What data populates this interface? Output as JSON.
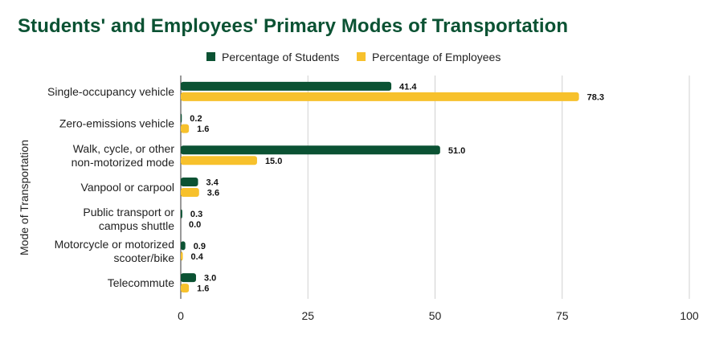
{
  "chart_data": {
    "type": "bar",
    "orientation": "horizontal",
    "title": "Students' and Employees' Primary Modes of Transportation",
    "xlabel": "",
    "ylabel": "Mode of Transportation",
    "xlim": [
      0,
      100
    ],
    "xticks": [
      0,
      25,
      50,
      75,
      100
    ],
    "legend_position": "top",
    "categories": [
      [
        "Single-occupancy vehicle"
      ],
      [
        "Zero-emissions vehicle"
      ],
      [
        "Walk, cycle, or other",
        "non-motorized mode"
      ],
      [
        "Vanpool or carpool"
      ],
      [
        "Public transport or",
        "campus shuttle"
      ],
      [
        "Motorcycle or motorized",
        "scooter/bike"
      ],
      [
        "Telecommute"
      ]
    ],
    "series": [
      {
        "name": "Percentage of Students",
        "color": "#0b5233",
        "values": [
          41.4,
          0.2,
          51.0,
          3.4,
          0.3,
          0.9,
          3.0
        ]
      },
      {
        "name": "Percentage of Employees",
        "color": "#f7c12c",
        "values": [
          78.3,
          1.6,
          15.0,
          3.6,
          0.0,
          0.4,
          1.6
        ]
      }
    ]
  }
}
